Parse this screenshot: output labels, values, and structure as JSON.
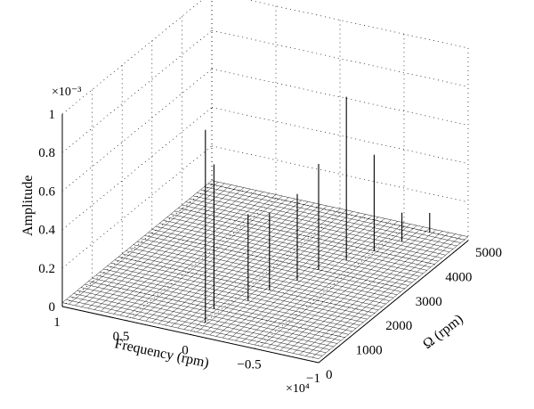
{
  "chart_data": {
    "type": "waterfall-3d",
    "title": "",
    "zlabel": "Amplitude",
    "xlabel": "Frequency (rpm)",
    "ylabel": "Ω (rpm)",
    "z_multiplier": "×10⁻³",
    "x_multiplier": "×10⁴",
    "zlim": [
      0,
      1
    ],
    "xlim": [
      1,
      -1
    ],
    "ylim": [
      0,
      5000
    ],
    "z_ticks": [
      "0",
      "0.2",
      "0.4",
      "0.6",
      "0.8",
      "1"
    ],
    "x_ticks": [
      "1",
      "0.5",
      "0",
      "−0.5",
      "−1"
    ],
    "y_ticks": [
      "0",
      "1000",
      "2000",
      "3000",
      "4000",
      "5000"
    ],
    "grid": true,
    "note": "",
    "peaks": [
      {
        "omega": 500,
        "frequency": 0.0,
        "amplitude": 1.0
      },
      {
        "omega": 1000,
        "frequency": 0.05,
        "amplitude": 0.75
      },
      {
        "omega": 1500,
        "frequency": -0.1,
        "amplitude": 0.45
      },
      {
        "omega": 2000,
        "frequency": -0.15,
        "amplitude": 0.4
      },
      {
        "omega": 2500,
        "frequency": -0.25,
        "amplitude": 0.45
      },
      {
        "omega": 3000,
        "frequency": -0.3,
        "amplitude": 0.55
      },
      {
        "omega": 3500,
        "frequency": -0.4,
        "amplitude": 0.85
      },
      {
        "omega": 4000,
        "frequency": -0.5,
        "amplitude": 0.5
      },
      {
        "omega": 4500,
        "frequency": -0.6,
        "amplitude": 0.15
      },
      {
        "omega": 5000,
        "frequency": -0.7,
        "amplitude": 0.1
      }
    ]
  }
}
